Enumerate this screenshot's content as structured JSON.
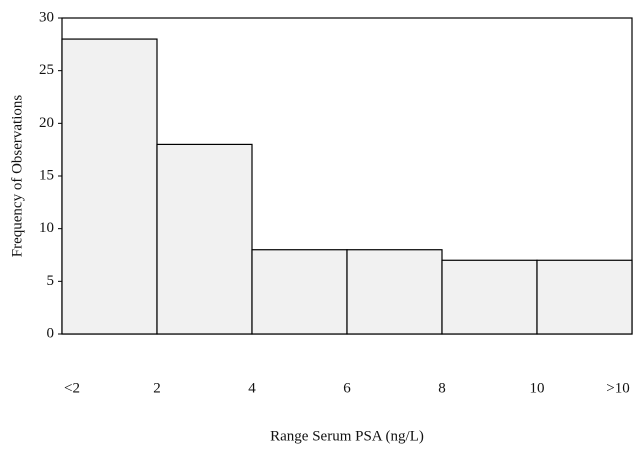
{
  "chart_data": {
    "type": "histogram",
    "x_edge_labels": [
      "<2",
      "2",
      "4",
      "6",
      "8",
      "10",
      ">10"
    ],
    "values": [
      28,
      18,
      8,
      8,
      7,
      7
    ],
    "color": "#f1f1f1",
    "ylim": [
      0,
      30
    ],
    "yticks": [
      0,
      5,
      10,
      15,
      20,
      25,
      30
    ],
    "xlabel": "Range Serum PSA (ng/L)",
    "ylabel": "Frequency of Observations"
  }
}
